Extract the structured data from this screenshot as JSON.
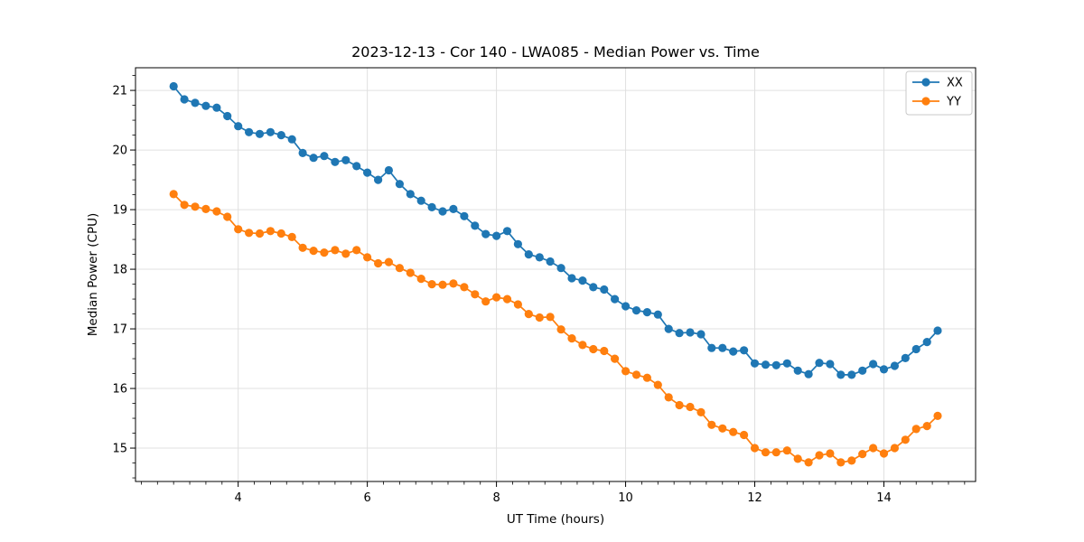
{
  "figure": {
    "background": "#ffffff"
  },
  "chart_data": {
    "type": "line",
    "title": "2023-12-13 - Cor 140 - LWA085 - Median Power vs. Time",
    "xlabel": "UT Time (hours)",
    "ylabel": "Median Power (CPU)",
    "xlim": [
      2.41,
      15.42
    ],
    "ylim": [
      14.44,
      21.38
    ],
    "x_major_ticks": [
      4,
      6,
      8,
      10,
      12,
      14
    ],
    "y_major_ticks": [
      15,
      16,
      17,
      18,
      19,
      20,
      21
    ],
    "minor_tick_step_x": 0.25,
    "minor_tick_step_y": 0.25,
    "grid": true,
    "grid_color": "#e0e0e0",
    "spine_color": "#000000",
    "legend_position": "upper right",
    "legend_border_color": "#c9c9c9",
    "x": [
      3.0,
      3.167,
      3.333,
      3.5,
      3.667,
      3.833,
      4.0,
      4.167,
      4.333,
      4.5,
      4.667,
      4.833,
      5.0,
      5.167,
      5.333,
      5.5,
      5.667,
      5.833,
      6.0,
      6.167,
      6.333,
      6.5,
      6.667,
      6.833,
      7.0,
      7.167,
      7.333,
      7.5,
      7.667,
      7.833,
      8.0,
      8.167,
      8.333,
      8.5,
      8.667,
      8.833,
      9.0,
      9.167,
      9.333,
      9.5,
      9.667,
      9.833,
      10.0,
      10.167,
      10.333,
      10.5,
      10.667,
      10.833,
      11.0,
      11.167,
      11.333,
      11.5,
      11.667,
      11.833,
      12.0,
      12.167,
      12.333,
      12.5,
      12.667,
      12.833,
      13.0,
      13.167,
      13.333,
      13.5,
      13.667,
      13.833,
      14.0,
      14.167,
      14.333,
      14.5,
      14.667,
      14.833
    ],
    "series": [
      {
        "name": "XX",
        "color": "#1f77b4",
        "marker": "circle",
        "values": [
          21.07,
          20.85,
          20.79,
          20.74,
          20.71,
          20.57,
          20.4,
          20.3,
          20.27,
          20.3,
          20.25,
          20.18,
          19.95,
          19.87,
          19.9,
          19.8,
          19.83,
          19.73,
          19.62,
          19.5,
          19.66,
          19.43,
          19.26,
          19.15,
          19.04,
          18.97,
          19.01,
          18.89,
          18.73,
          18.59,
          18.56,
          18.64,
          18.42,
          18.25,
          18.2,
          18.13,
          18.02,
          17.85,
          17.81,
          17.7,
          17.66,
          17.5,
          17.38,
          17.31,
          17.28,
          17.24,
          17.0,
          16.93,
          16.94,
          16.91,
          16.68,
          16.68,
          16.62,
          16.64,
          16.42,
          16.4,
          16.39,
          16.42,
          16.3,
          16.24,
          16.43,
          16.41,
          16.23,
          16.23,
          16.3,
          16.41,
          16.32,
          16.38,
          16.51,
          16.66,
          16.78,
          16.97
        ]
      },
      {
        "name": "YY",
        "color": "#ff7f0e",
        "marker": "circle",
        "values": [
          19.26,
          19.08,
          19.05,
          19.01,
          18.97,
          18.88,
          18.67,
          18.61,
          18.6,
          18.64,
          18.6,
          18.54,
          18.36,
          18.31,
          18.28,
          18.32,
          18.26,
          18.32,
          18.2,
          18.1,
          18.12,
          18.02,
          17.94,
          17.84,
          17.75,
          17.74,
          17.76,
          17.7,
          17.58,
          17.46,
          17.53,
          17.5,
          17.41,
          17.25,
          17.19,
          17.2,
          16.99,
          16.84,
          16.73,
          16.66,
          16.63,
          16.5,
          16.29,
          16.23,
          16.18,
          16.06,
          15.85,
          15.72,
          15.69,
          15.6,
          15.39,
          15.33,
          15.27,
          15.22,
          15.0,
          14.93,
          14.93,
          14.96,
          14.82,
          14.76,
          14.88,
          14.91,
          14.76,
          14.79,
          14.9,
          15.0,
          14.91,
          15.0,
          15.14,
          15.32,
          15.37,
          15.54
        ]
      }
    ]
  }
}
